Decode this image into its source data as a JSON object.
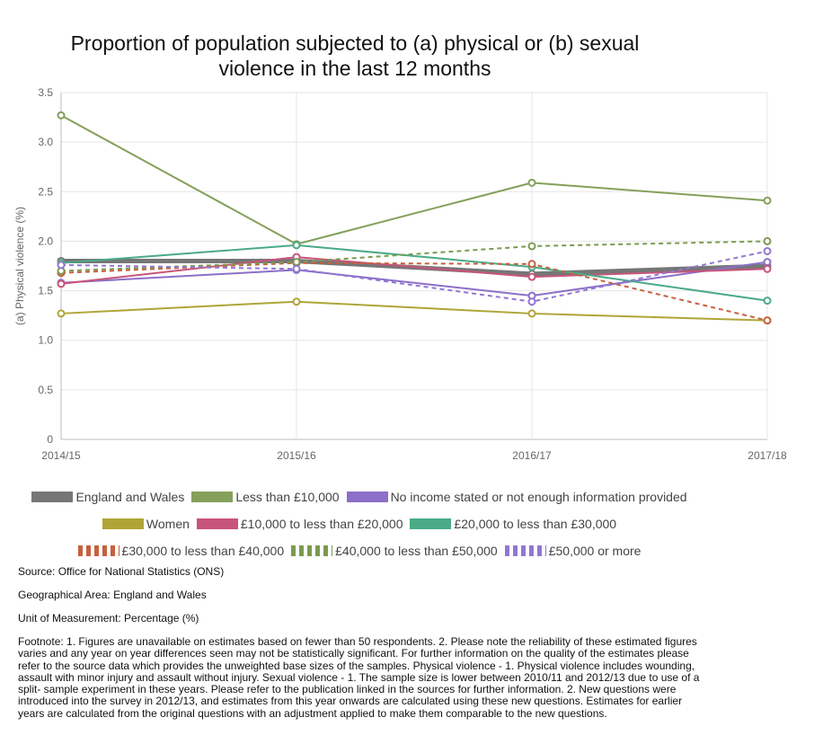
{
  "chart_data": {
    "type": "line",
    "title": [
      "Proportion of population subjected to (a) physical or (b) sexual",
      "violence in the last 12 months"
    ],
    "ylabel": "(a) Physical violence (%)",
    "xlabel": "",
    "ylim": [
      0,
      3.5
    ],
    "yticks": [
      "0",
      "0.5",
      "1.0",
      "1.5",
      "2.0",
      "2.5",
      "3.0",
      "3.5"
    ],
    "categories": [
      "2014/15",
      "2015/16",
      "2016/17",
      "2017/18"
    ],
    "grid": true,
    "legend_position": "bottom",
    "series": [
      {
        "name": "England and Wales",
        "values": [
          1.8,
          1.8,
          1.67,
          1.75
        ],
        "color": "#767676",
        "dashed": false,
        "bold": true
      },
      {
        "name": "Less than £10,000",
        "values": [
          3.27,
          1.97,
          2.59,
          2.41
        ],
        "color": "#84a05b",
        "dashed": false
      },
      {
        "name": "No income stated or not enough information provided",
        "values": [
          1.58,
          1.71,
          1.45,
          1.79
        ],
        "color": "#8c6fc8",
        "dashed": false
      },
      {
        "name": "Women",
        "values": [
          1.27,
          1.39,
          1.27,
          1.2
        ],
        "color": "#b0a437",
        "dashed": false
      },
      {
        "name": "£10,000 to less than £20,000",
        "values": [
          1.57,
          1.84,
          1.64,
          1.72
        ],
        "color": "#c8547b",
        "dashed": false
      },
      {
        "name": "£20,000 to less than £30,000",
        "values": [
          1.78,
          1.96,
          1.74,
          1.4
        ],
        "color": "#4aaa86",
        "dashed": false
      },
      {
        "name": "£30,000 to less than £40,000",
        "values": [
          1.68,
          1.78,
          1.77,
          1.2
        ],
        "color": "#c6603e",
        "dashed": true
      },
      {
        "name": "£40,000 to less than £50,000",
        "values": [
          1.7,
          1.79,
          1.95,
          2.0
        ],
        "color": "#7c9a50",
        "dashed": true
      },
      {
        "name": "£50,000 or more",
        "values": [
          1.76,
          1.72,
          1.39,
          1.9
        ],
        "color": "#9277d2",
        "dashed": true
      }
    ]
  },
  "meta": {
    "source": "Source: Office for National Statistics (ONS)",
    "area": "Geographical Area: England and Wales",
    "unit": "Unit of Measurement: Percentage (%)",
    "footnote": "Footnote: 1. Figures are unavailable on estimates based on fewer than 50 respondents. 2. Please note the reliability of these estimated figures varies and any year on year differences seen may not be statistically significant. For further information on the quality of the estimates please refer to the source data which provides the unweighted base sizes of the samples. Physical violence - 1. Physical violence includes wounding, assault with minor injury and assault without injury. Sexual violence - 1. The sample size is lower between 2010/11 and 2012/13 due to use of a split- sample experiment in these years. Please refer to the publication linked in the sources for further information. 2. New questions were introduced into the survey in 2012/13, and estimates from this year onwards are calculated using these new questions. Estimates for earlier years are calculated from the original questions with an adjustment applied to make them comparable to the new questions."
  }
}
